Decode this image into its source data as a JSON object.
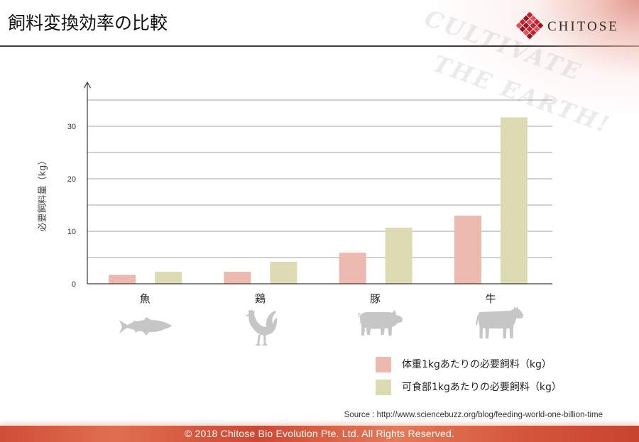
{
  "logo": {
    "icon": "chitose-diamond-logo-icon",
    "text": "CHITOSE"
  },
  "watermark": {
    "line1": "CULTIVATE",
    "line2": "THE EARTH!"
  },
  "chart_data": {
    "type": "bar",
    "title": "飼料変換効率の比較",
    "categories": [
      "魚",
      "鶏",
      "豚",
      "牛"
    ],
    "series": [
      {
        "name": "体重1kgあたりの必要飼料（kg）",
        "values": [
          1.7,
          2.3,
          5.9,
          13.0
        ],
        "color": "#ebb9ad"
      },
      {
        "name": "可食部1kgあたりの必要飼料（kg）",
        "values": [
          2.3,
          4.2,
          10.7,
          31.7
        ],
        "color": "#dddbb2"
      }
    ],
    "ylabel": "必要飼料量（kg）",
    "ylim": [
      0,
      35
    ],
    "yticks": [
      0,
      10,
      20,
      30
    ],
    "grid": true,
    "legend": "bottom-right"
  },
  "category_icons": [
    "fish-icon",
    "chicken-icon",
    "pig-icon",
    "cow-icon"
  ],
  "source": "Source : http://www.sciencebuzz.org/blog/feeding-world-one-billion-time",
  "footer": {
    "copyright": "© 2018 Chitose Bio Evolution Pte. Ltd. All Rights Reserved."
  },
  "colors": {
    "brand_red": "#c8202f",
    "footer_red": "#d4553c",
    "axis": "#3a3a3a",
    "gridline": "#a0a0a0",
    "icon_gray": "#c6c6c6"
  }
}
